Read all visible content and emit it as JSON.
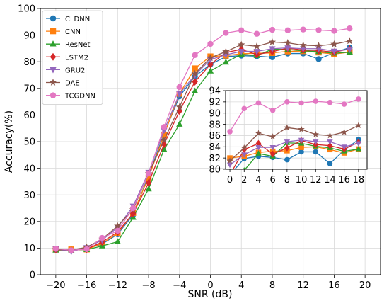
{
  "chart_data": {
    "type": "line",
    "title": "",
    "xlabel": "SNR (dB)",
    "ylabel": "Accuracy(%)",
    "xlim": [
      -22,
      22
    ],
    "ylim": [
      0,
      100
    ],
    "xticks": [
      -20,
      -16,
      -12,
      -8,
      -4,
      0,
      4,
      8,
      12,
      16,
      20
    ],
    "yticks": [
      0,
      10,
      20,
      30,
      40,
      50,
      60,
      70,
      80,
      90,
      100
    ],
    "grid": true,
    "legend_position": "top-left",
    "x": [
      -20,
      -18,
      -16,
      -14,
      -12,
      -10,
      -8,
      -6,
      -4,
      -2,
      0,
      2,
      4,
      6,
      8,
      10,
      12,
      14,
      16,
      18
    ],
    "series": [
      {
        "name": "CLDNN",
        "color": "#1f77b4",
        "marker": "circle",
        "values": [
          9.8,
          9.0,
          9.8,
          11.5,
          15.2,
          22.5,
          37.2,
          53.0,
          67.0,
          74.5,
          79.0,
          81.9,
          82.3,
          82.1,
          81.7,
          83.1,
          83.1,
          81.0,
          83.4,
          85.3
        ]
      },
      {
        "name": "CNN",
        "color": "#ff7f0e",
        "marker": "square",
        "values": [
          9.6,
          9.5,
          9.5,
          11.8,
          15.5,
          23.2,
          36.5,
          52.5,
          68.0,
          77.5,
          82.0,
          82.3,
          83.0,
          83.2,
          83.3,
          83.9,
          84.0,
          83.5,
          82.9,
          83.6
        ]
      },
      {
        "name": "ResNet",
        "color": "#2ca02c",
        "marker": "triangle-up",
        "values": [
          9.2,
          9.3,
          9.4,
          10.8,
          12.4,
          21.5,
          32.2,
          47.0,
          56.5,
          69.0,
          76.5,
          79.8,
          82.8,
          82.3,
          84.7,
          84.6,
          84.1,
          83.8,
          83.2,
          83.6
        ]
      },
      {
        "name": "LSTM2",
        "color": "#d62728",
        "marker": "diamond",
        "values": [
          9.4,
          9.1,
          9.6,
          12.3,
          16.0,
          23.0,
          34.5,
          49.0,
          61.5,
          72.5,
          79.0,
          83.5,
          84.6,
          82.7,
          83.8,
          85.1,
          84.4,
          84.2,
          83.6,
          84.8
        ]
      },
      {
        "name": "GRU2",
        "color": "#9467bd",
        "marker": "triangle-down",
        "values": [
          9.7,
          8.7,
          10.2,
          13.0,
          17.8,
          25.8,
          38.5,
          54.2,
          68.0,
          75.0,
          80.8,
          82.6,
          83.9,
          83.9,
          84.9,
          85.2,
          84.9,
          84.9,
          84.0,
          84.6
        ]
      },
      {
        "name": "DAE",
        "color": "#8c564b",
        "marker": "star",
        "values": [
          9.5,
          9.3,
          10.3,
          13.4,
          18.3,
          24.5,
          38.0,
          50.5,
          63.0,
          75.5,
          81.5,
          83.8,
          86.4,
          85.8,
          87.4,
          87.1,
          86.2,
          86.0,
          86.6,
          87.8
        ]
      },
      {
        "name": "TCGDNN",
        "color": "#e377c2",
        "marker": "circle",
        "values": [
          9.8,
          9.2,
          9.6,
          13.8,
          16.5,
          25.0,
          38.0,
          55.5,
          70.5,
          82.5,
          86.7,
          90.8,
          91.8,
          90.5,
          92.0,
          91.8,
          92.1,
          91.9,
          91.6,
          92.5
        ]
      }
    ],
    "inset": {
      "xlim": [
        -0.6,
        19.2
      ],
      "ylim": [
        80,
        94
      ],
      "xticks": [
        0,
        2,
        4,
        6,
        8,
        10,
        12,
        14,
        16,
        18
      ],
      "yticks": [
        80,
        82,
        84,
        86,
        88,
        90,
        92,
        94
      ],
      "grid": true
    }
  }
}
